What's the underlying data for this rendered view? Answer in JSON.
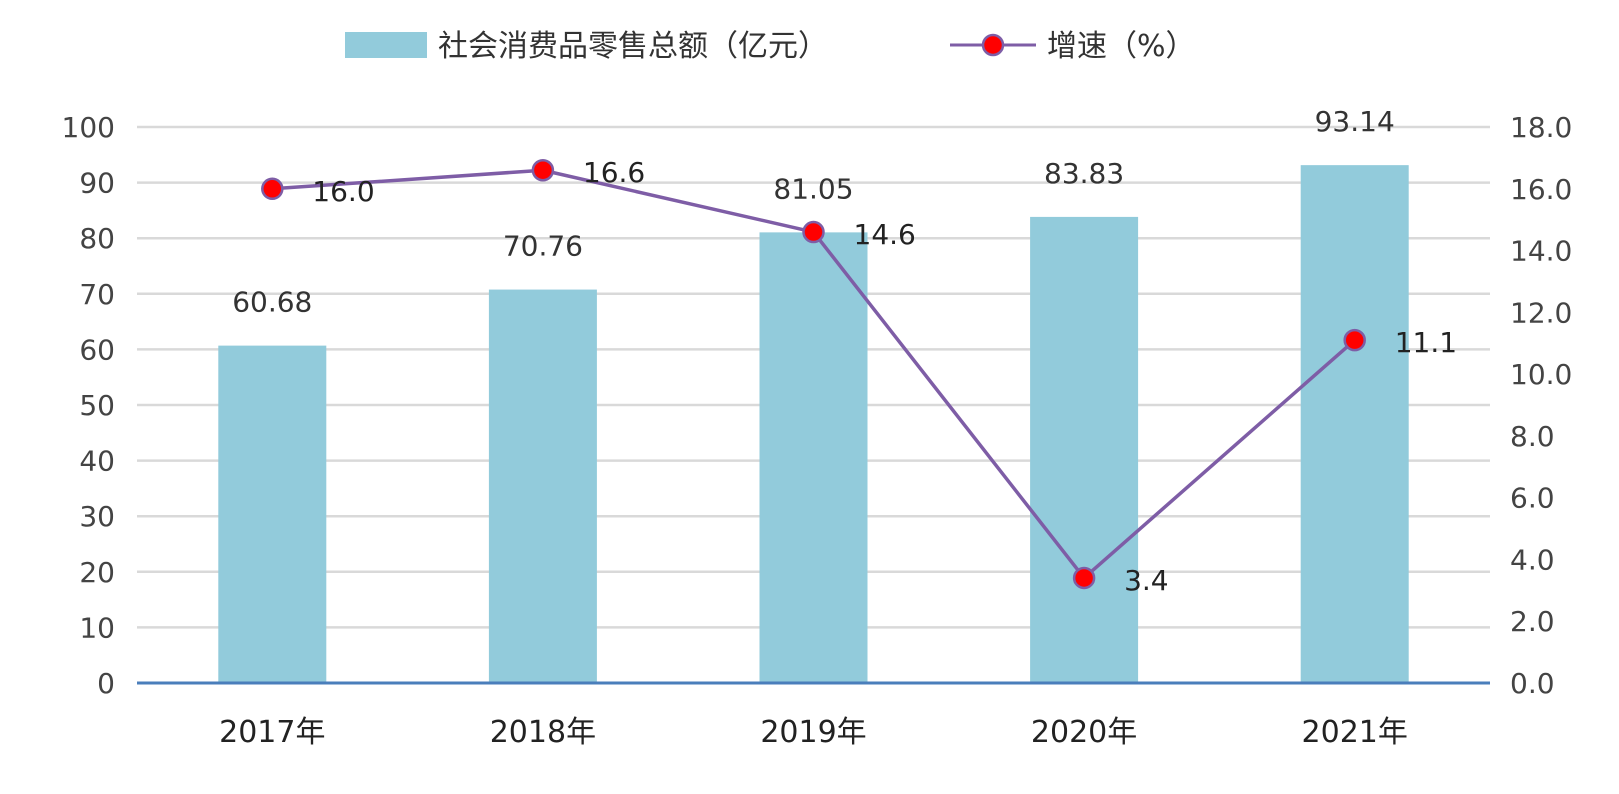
{
  "chart_data": {
    "type": "bar",
    "categories": [
      "2017年",
      "2018年",
      "2019年",
      "2020年",
      "2021年"
    ],
    "series": [
      {
        "name": "社会消费品零售总额（亿元）",
        "type": "bar",
        "axis": "left",
        "values": [
          60.68,
          70.76,
          81.05,
          83.83,
          93.14
        ],
        "labels": [
          "60.68",
          "70.76",
          "81.05",
          "83.83",
          "93.14"
        ],
        "color": "#92CBDB"
      },
      {
        "name": "增速（%）",
        "type": "line",
        "axis": "right",
        "values": [
          16.0,
          16.6,
          14.6,
          3.4,
          11.1
        ],
        "labels": [
          "16.0",
          "16.6",
          "14.6",
          "3.4",
          "11.1"
        ],
        "line_color": "#7E5DA6",
        "marker_color": "#FF0000"
      }
    ],
    "y_left": {
      "ylim": [
        0,
        100
      ],
      "ticks": [
        0,
        10,
        20,
        30,
        40,
        50,
        60,
        70,
        80,
        90,
        100
      ],
      "tick_labels": [
        "0",
        "10",
        "20",
        "30",
        "40",
        "50",
        "60",
        "70",
        "80",
        "90",
        "100"
      ]
    },
    "y_right": {
      "ylim": [
        0,
        18
      ],
      "ticks": [
        0,
        2,
        4,
        6,
        8,
        10,
        12,
        14,
        16,
        18
      ],
      "tick_labels": [
        "0.0",
        "2.0",
        "4.0",
        "6.0",
        "8.0",
        "10.0",
        "12.0",
        "14.0",
        "16.0",
        "18.0"
      ]
    },
    "grid": true,
    "legend": "top-center",
    "axis_color": "#4A7EBB",
    "grid_color": "#D9D9D9"
  }
}
